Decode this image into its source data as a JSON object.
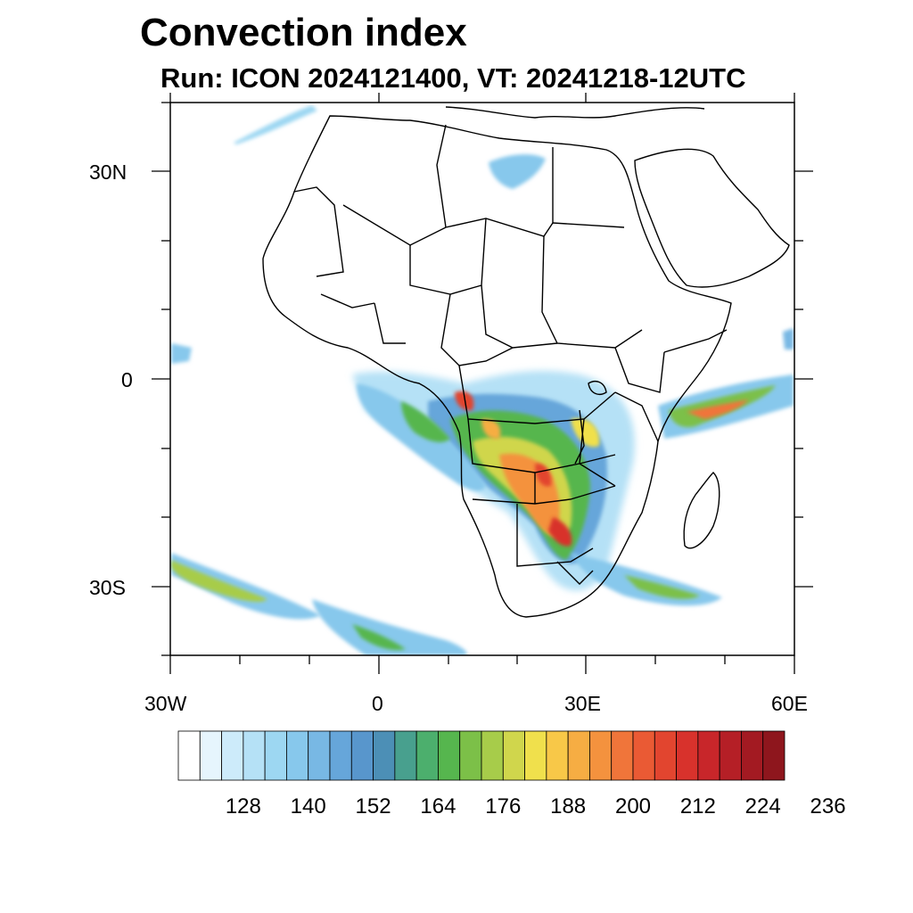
{
  "title": "Convection index",
  "subtitle": "Run: ICON 2024121400,  VT: 20241218-12UTC",
  "map": {
    "lon_range": [
      -30,
      60
    ],
    "lat_range": [
      -40,
      40
    ],
    "lat_labels": [
      "30N",
      "0",
      "30S"
    ],
    "lon_labels": [
      "30W",
      "0",
      "30E",
      "60E"
    ]
  },
  "colorbar": {
    "colors": [
      "#ffffff",
      "#e6f5fd",
      "#cdebfa",
      "#b5e1f6",
      "#9dd7f2",
      "#87c8ec",
      "#78b8e4",
      "#66a6da",
      "#5896cc",
      "#4c8fb6",
      "#48a08e",
      "#4caf6d",
      "#56b64e",
      "#7cc048",
      "#a7cc4a",
      "#d0d64c",
      "#f0e04c",
      "#f8c848",
      "#f6ad43",
      "#f4923e",
      "#f0753a",
      "#ea5a34",
      "#e2452f",
      "#d8322c",
      "#c8262a",
      "#b51f26",
      "#a31a22",
      "#8e161d"
    ],
    "labels": [
      "128",
      "140",
      "152",
      "164",
      "176",
      "188",
      "200",
      "212",
      "224",
      "236"
    ]
  }
}
